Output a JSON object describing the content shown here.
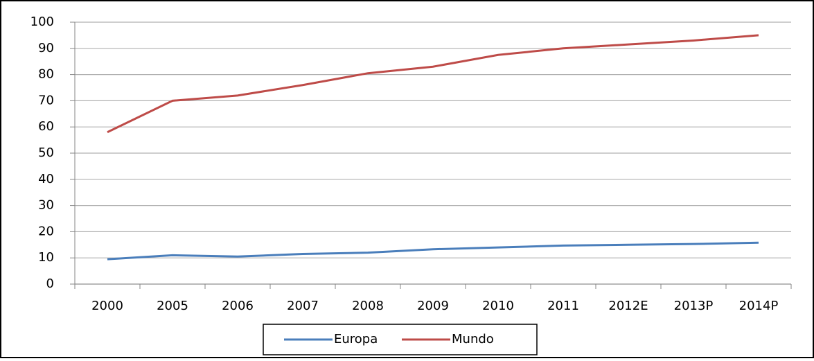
{
  "chart_data": {
    "type": "line",
    "categories": [
      "2000",
      "2005",
      "2006",
      "2007",
      "2008",
      "2009",
      "2010",
      "2011",
      "2012E",
      "2013P",
      "2014P"
    ],
    "series": [
      {
        "name": "Europa",
        "color": "#4a7ebb",
        "values": [
          9.5,
          11,
          10.5,
          11.5,
          12,
          13.3,
          14,
          14.7,
          15,
          15.3,
          15.8
        ]
      },
      {
        "name": "Mundo",
        "color": "#be4b48",
        "values": [
          58,
          70,
          72,
          76,
          80.5,
          83,
          87.5,
          90,
          91.5,
          93,
          95
        ]
      }
    ],
    "ylim": [
      0,
      100
    ],
    "yticks": [
      0,
      10,
      20,
      30,
      40,
      50,
      60,
      70,
      80,
      90,
      100
    ],
    "grid": true,
    "legend": "bottom"
  }
}
